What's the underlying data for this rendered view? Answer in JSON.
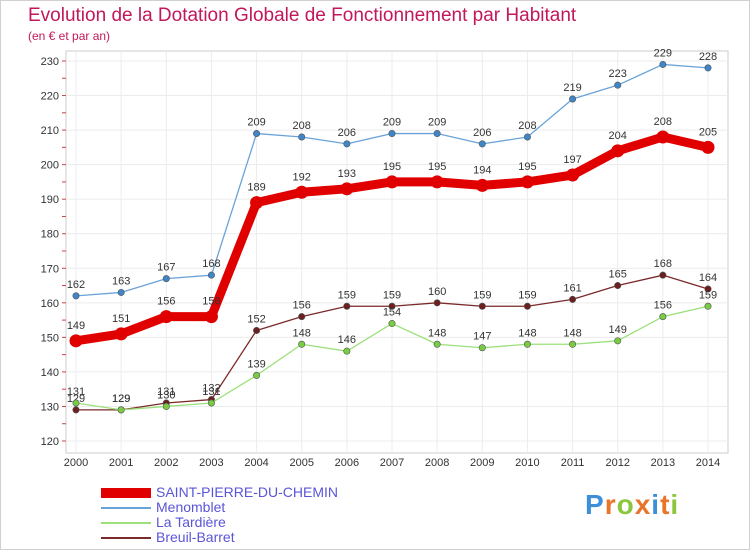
{
  "header": {
    "title": "Evolution de la Dotation Globale de Fonctionnement par Habitant",
    "subtitle": "(en € et par an)"
  },
  "logo": {
    "text": "Proxiti",
    "letters": [
      "P",
      "r",
      "o",
      "x",
      "i",
      "t",
      "i"
    ],
    "colors": [
      "#3d8fd9",
      "#e8752a",
      "#8cc63f",
      "#e8752a",
      "#3d8fd9",
      "#e8752a",
      "#8cc63f"
    ]
  },
  "chart_data": {
    "type": "line",
    "title": "Evolution de la Dotation Globale de Fonctionnement par Habitant",
    "subtitle": "(en € et par an)",
    "xlabel": "",
    "ylabel": "",
    "x": [
      2000,
      2001,
      2002,
      2003,
      2004,
      2005,
      2006,
      2007,
      2008,
      2009,
      2010,
      2011,
      2012,
      2013,
      2014
    ],
    "ylim": [
      120,
      230
    ],
    "yticks": [
      120,
      130,
      140,
      150,
      160,
      170,
      180,
      190,
      200,
      210,
      220,
      230
    ],
    "grid": true,
    "legend": "bottom-left",
    "series": [
      {
        "name": "SAINT-PIERRE-DU-CHEMIN",
        "color": "#e00000",
        "point_color": "#e00000",
        "emphasis": "thick",
        "values": [
          149,
          151,
          156,
          156,
          189,
          192,
          193,
          195,
          195,
          194,
          195,
          197,
          204,
          208,
          205
        ]
      },
      {
        "name": "Menomblet",
        "color": "#6aa3d8",
        "point_color": "#3f86c9",
        "emphasis": "thin",
        "values": [
          162,
          163,
          167,
          168,
          209,
          208,
          206,
          209,
          209,
          206,
          208,
          219,
          223,
          229,
          228
        ]
      },
      {
        "name": "La Tardière",
        "color": "#9be07a",
        "point_color": "#77cc44",
        "emphasis": "thin",
        "values": [
          131,
          129,
          130,
          131,
          139,
          148,
          146,
          154,
          148,
          147,
          148,
          148,
          149,
          156,
          159
        ]
      },
      {
        "name": "Breuil-Barret",
        "color": "#7a2a2a",
        "point_color": "#6b1f1f",
        "emphasis": "thin",
        "values": [
          129,
          129,
          131,
          132,
          152,
          156,
          159,
          159,
          160,
          159,
          159,
          161,
          165,
          168,
          164
        ]
      }
    ]
  }
}
